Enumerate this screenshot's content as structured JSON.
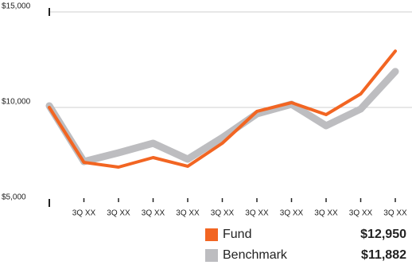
{
  "chart_data": {
    "type": "line",
    "categories": [
      null,
      "3Q XX",
      "3Q XX",
      "3Q XX",
      "3Q XX",
      "3Q XX",
      "3Q XX",
      "3Q XX",
      "3Q XX",
      "3Q XX",
      "3Q XX"
    ],
    "series": [
      {
        "name": "Benchmark",
        "color": "#bdbdc0",
        "legend_value": "$11,882",
        "values": [
          10083,
          7167,
          7625,
          8125,
          7292,
          8417,
          9667,
          10167,
          9042,
          9917,
          11882
        ]
      },
      {
        "name": "Fund",
        "color": "#f26522",
        "legend_value": "$12,950",
        "values": [
          10000,
          7125,
          6875,
          7375,
          6917,
          8125,
          9792,
          10250,
          9625,
          10708,
          12950
        ]
      }
    ],
    "ylim": [
      5000,
      15000
    ],
    "yticks": [
      {
        "value": 5000,
        "label": "$5,000"
      },
      {
        "value": 10000,
        "label": "$10,000"
      },
      {
        "value": 15000,
        "label": "$15,000"
      }
    ],
    "grid": true
  }
}
